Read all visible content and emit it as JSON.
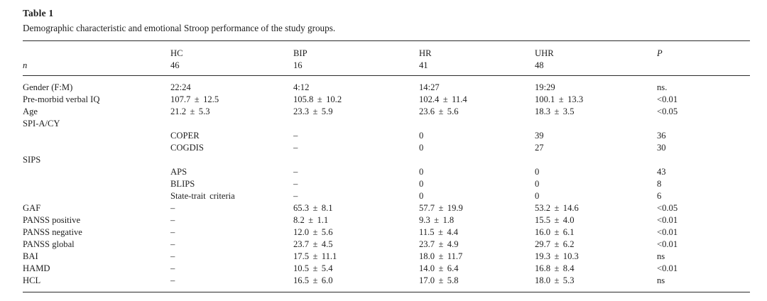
{
  "page": {
    "background_color": "#ffffff",
    "text_color": "#1e1e1e",
    "rule_color": "#2b2b2b"
  },
  "table": {
    "title": "Table 1",
    "caption": "Demographic characteristic and emotional Stroop performance of the study groups.",
    "columns": [
      "",
      "HC",
      "BIP",
      "HR",
      "UHR",
      "P"
    ],
    "n_row": {
      "label": "n",
      "values": [
        "46",
        "16",
        "41",
        "48",
        ""
      ]
    },
    "rows": [
      [
        "Gender (F:M)",
        "22:24",
        "4:12",
        "14:27",
        "19:29",
        "ns."
      ],
      [
        "Pre-morbid verbal IQ",
        "107.7 ± 12.5",
        "105.8 ± 10.2",
        "102.4 ± 11.4",
        "100.1 ± 13.3",
        "<0.01"
      ],
      [
        "Age",
        "21.2 ± 5.3",
        "23.3 ± 5.9",
        "23.6 ± 5.6",
        "18.3 ± 3.5",
        "<0.05"
      ],
      [
        "SPI-A/CY",
        "",
        "",
        "",
        "",
        ""
      ],
      [
        "",
        "COPER",
        "–",
        "0",
        "39",
        "36"
      ],
      [
        "",
        "COGDIS",
        "–",
        "0",
        "27",
        "30"
      ],
      [
        "SIPS",
        "",
        "",
        "",
        "",
        ""
      ],
      [
        "",
        "APS",
        "–",
        "0",
        "0",
        "43"
      ],
      [
        "",
        "BLIPS",
        "–",
        "0",
        "0",
        "8"
      ],
      [
        "",
        "State-trait criteria",
        "–",
        "0",
        "0",
        "6"
      ],
      [
        "GAF",
        "–",
        "65.3 ± 8.1",
        "57.7 ± 19.9",
        "53.2 ± 14.6",
        "<0.05"
      ],
      [
        "PANSS positive",
        "–",
        "8.2 ± 1.1",
        "9.3 ± 1.8",
        "15.5 ± 4.0",
        "<0.01"
      ],
      [
        "PANSS negative",
        "–",
        "12.0 ± 5.6",
        "11.5 ± 4.4",
        "16.0 ± 6.1",
        "<0.01"
      ],
      [
        "PANSS global",
        "–",
        "23.7 ± 4.5",
        "23.7 ± 4.9",
        "29.7 ± 6.2",
        "<0.01"
      ],
      [
        "BAI",
        "–",
        "17.5 ± 11.1",
        "18.0 ± 11.7",
        "19.3 ± 10.3",
        "ns"
      ],
      [
        "HAMD",
        "–",
        "10.5 ± 5.4",
        "14.0 ± 6.4",
        "16.8 ± 8.4",
        "<0.01"
      ],
      [
        "HCL",
        "–",
        "16.5 ± 6.0",
        "17.0 ± 5.8",
        "18.0 ± 5.3",
        "ns"
      ]
    ]
  }
}
